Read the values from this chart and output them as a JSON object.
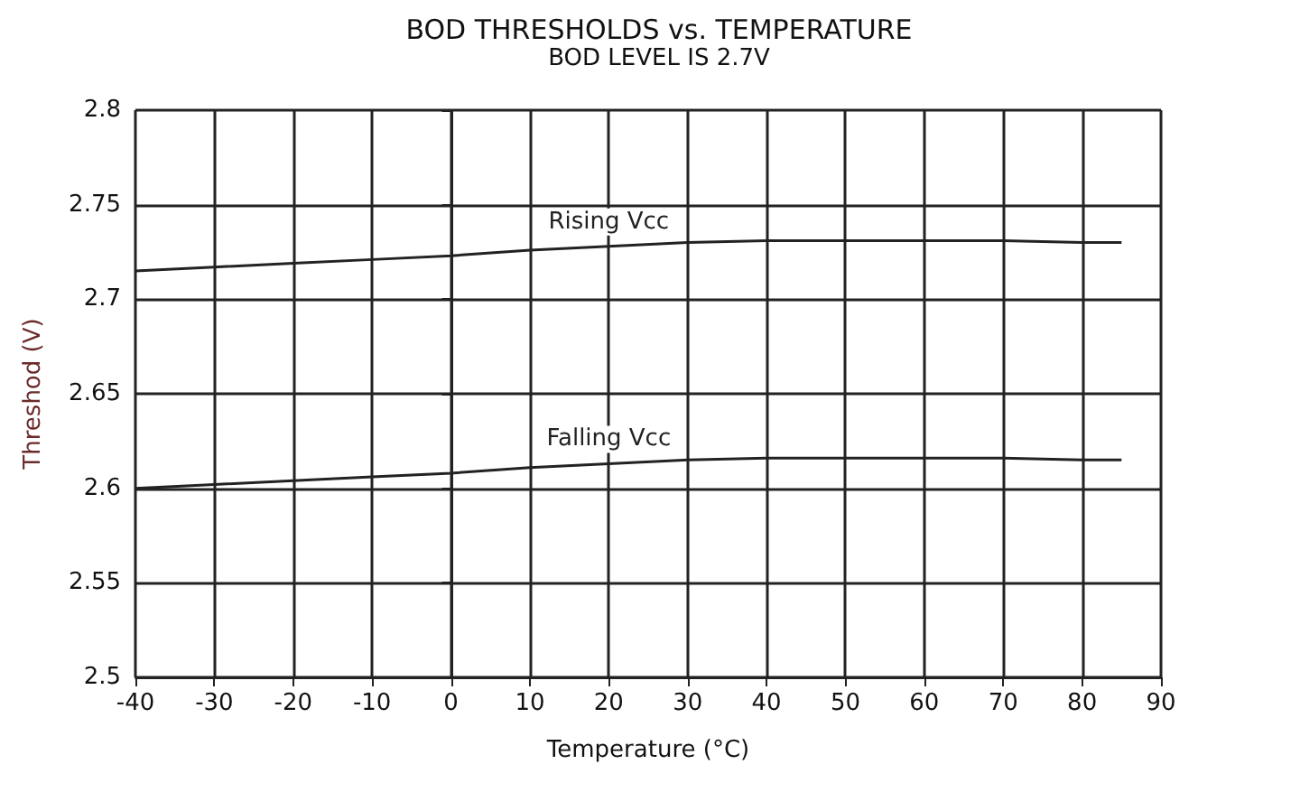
{
  "chart_data": {
    "type": "line",
    "title": "BOD THRESHOLDS vs. TEMPERATURE",
    "subtitle": "BOD LEVEL IS 2.7V",
    "xlabel": "Temperature (°C)",
    "ylabel": "Threshod (V)",
    "x": [
      -40,
      -30,
      -20,
      -10,
      0,
      10,
      20,
      30,
      40,
      50,
      60,
      70,
      80,
      85
    ],
    "series": [
      {
        "name": "Rising Vcc",
        "color": "#222222",
        "values": [
          2.715,
          2.717,
          2.719,
          2.721,
          2.723,
          2.726,
          2.728,
          2.73,
          2.731,
          2.731,
          2.731,
          2.731,
          2.73,
          2.73
        ]
      },
      {
        "name": "Falling Vcc",
        "color": "#222222",
        "values": [
          2.6,
          2.602,
          2.604,
          2.606,
          2.608,
          2.611,
          2.613,
          2.615,
          2.616,
          2.616,
          2.616,
          2.616,
          2.615,
          2.615
        ]
      }
    ],
    "xlim": [
      -40,
      90
    ],
    "xticks": [
      -40,
      -30,
      -20,
      -10,
      0,
      10,
      20,
      30,
      40,
      50,
      60,
      70,
      80,
      90
    ],
    "ylim": [
      2.5,
      2.8
    ],
    "yticks": [
      2.5,
      2.55,
      2.6,
      2.65,
      2.7,
      2.75,
      2.8
    ],
    "grid": true,
    "legend": false,
    "marker": "none",
    "line_style": "solid"
  }
}
